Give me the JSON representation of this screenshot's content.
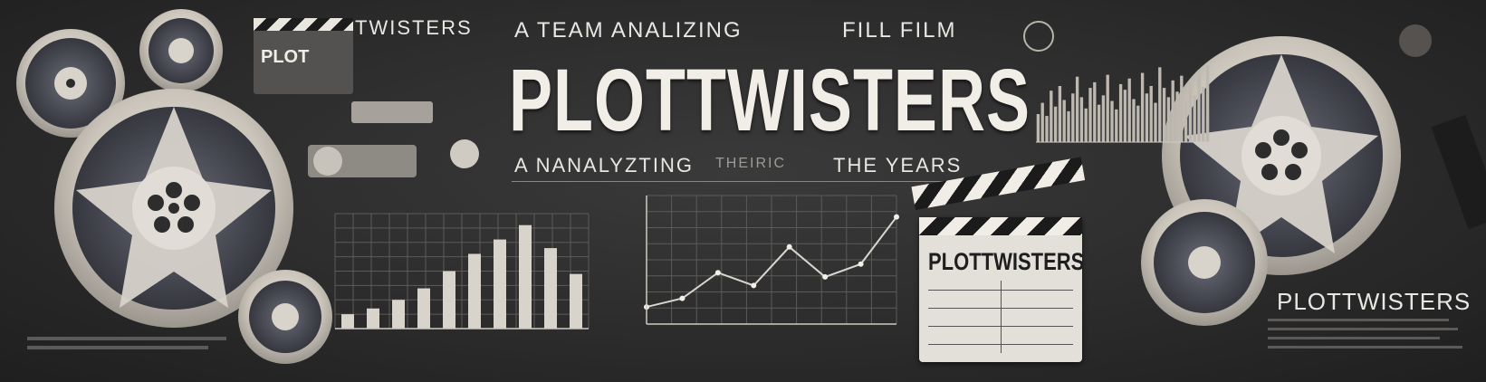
{
  "banner": {
    "tagline_top_left": "A TEAM ANALIZING",
    "tagline_top_right": "FILL FILM",
    "main_title": "PLOTTWISTERS",
    "tagline_bottom_left": "A NANALYZTING",
    "tagline_bottom_mid": "THEIRIC",
    "tagline_bottom_right": "THE YEARS",
    "clapper_left_text": "TWISTERS",
    "clapper_left_slate": "PLOT",
    "clapper_right_text": "PLOTTWISTERS",
    "right_label": "PLOTTWISTERS"
  },
  "colors": {
    "background": "#2b2b2b",
    "reel_metal": "#cfcac2",
    "reel_dark": "#4a4a50",
    "chart_line": "#d9d6cf",
    "bar_fill": "#d8d4cc"
  },
  "icons": [
    "film-reel-icon",
    "clapperboard-icon",
    "film-camera-icon",
    "film-strip-icon"
  ],
  "chart_data": [
    {
      "type": "bar",
      "categories": [
        "1",
        "2",
        "3",
        "4",
        "5",
        "6",
        "7",
        "8",
        "9",
        "10"
      ],
      "values": [
        10,
        14,
        20,
        28,
        40,
        52,
        62,
        72,
        56,
        38
      ],
      "ylim": [
        0,
        80
      ]
    },
    {
      "type": "line",
      "x": [
        1,
        2,
        3,
        4,
        5,
        6,
        7,
        8
      ],
      "values": [
        8,
        12,
        24,
        18,
        36,
        22,
        28,
        50
      ],
      "ylim": [
        0,
        60
      ]
    },
    {
      "type": "bar",
      "categories": [
        "1",
        "2",
        "3",
        "4",
        "5",
        "6",
        "7",
        "8",
        "9",
        "10",
        "11",
        "12",
        "13",
        "14",
        "15",
        "16",
        "17",
        "18",
        "19",
        "20",
        "21",
        "22",
        "23",
        "24",
        "25",
        "26",
        "27",
        "28",
        "29",
        "30",
        "31",
        "32",
        "33",
        "34",
        "35",
        "36",
        "37",
        "38",
        "39",
        "40"
      ],
      "values": [
        30,
        42,
        28,
        55,
        38,
        60,
        45,
        33,
        52,
        70,
        48,
        36,
        58,
        64,
        40,
        50,
        72,
        44,
        35,
        62,
        56,
        68,
        46,
        39,
        74,
        52,
        60,
        42,
        80,
        58,
        48,
        66,
        54,
        71,
        44,
        63,
        50,
        77,
        59,
        82
      ],
      "ylim": [
        0,
        90
      ]
    }
  ]
}
